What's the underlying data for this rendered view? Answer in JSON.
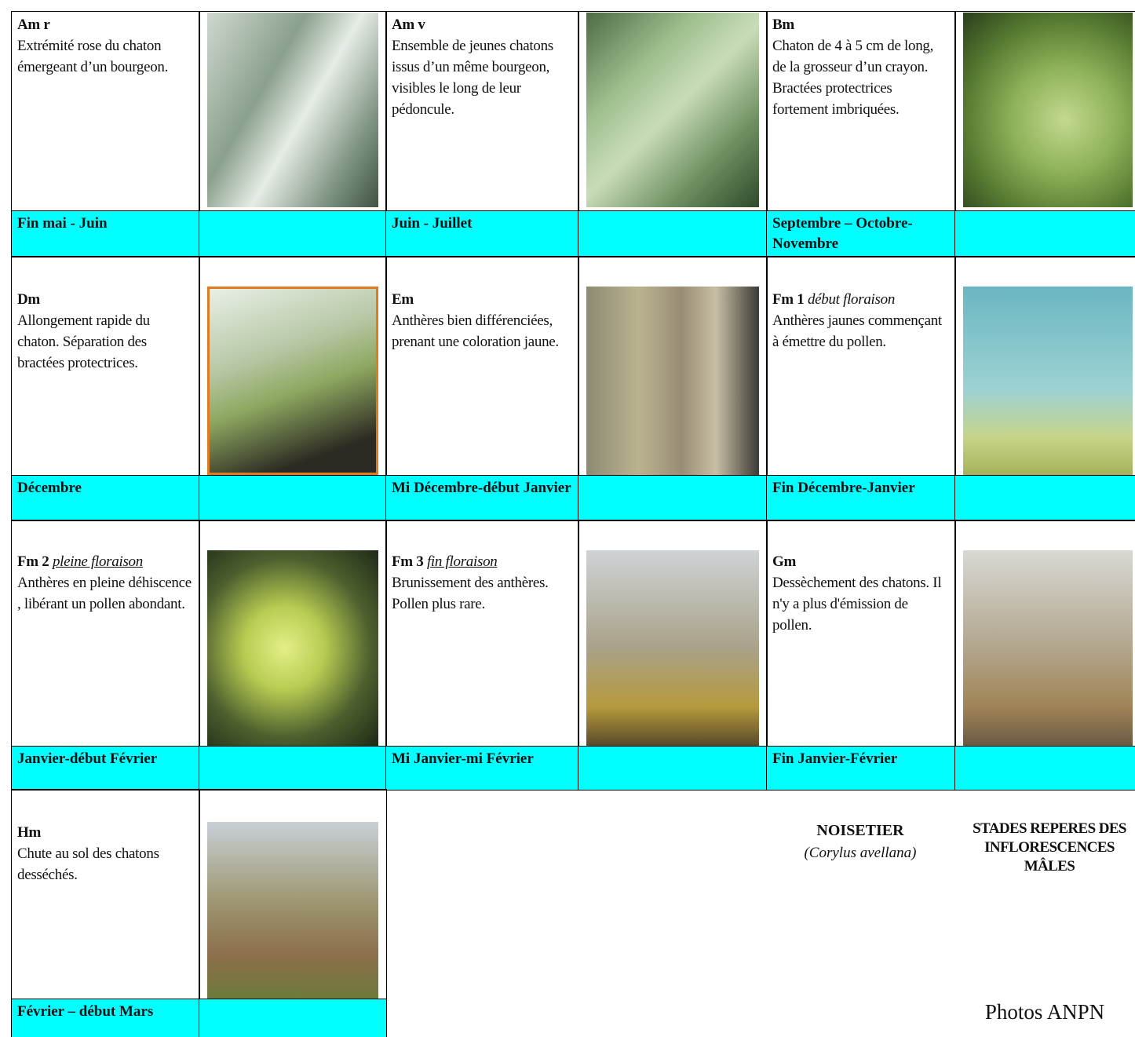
{
  "stages": [
    {
      "code": "Am r",
      "description": "Extrémité rose du chaton émergeant d’un bourgeon.",
      "period": "Fin mai - Juin"
    },
    {
      "code": "Am v",
      "description": "Ensemble de jeunes chatons issus d’un même bourgeon, visibles le long de leur pédoncule.",
      "period": "Juin - Juillet"
    },
    {
      "code": "Bm",
      "description": "Chaton de 4 à 5 cm de long, de la grosseur d’un crayon. Bractées protectrices fortement imbriquées.",
      "period": "Septembre – Octobre-Novembre"
    },
    {
      "code": "Dm",
      "description": "Allongement rapide du chaton. Séparation des bractées protectrices.",
      "period": "Décembre"
    },
    {
      "code": "Em",
      "description": "Anthères bien différenciées, prenant une coloration jaune.",
      "period": "Mi Décembre-début Janvier"
    },
    {
      "code": "Fm 1",
      "qualifier": "début floraison",
      "description": "Anthères jaunes commençant à émettre du pollen.",
      "period": "Fin Décembre-Janvier"
    },
    {
      "code": "Fm 2",
      "qualifier": "pleine floraison",
      "description": "Anthères en pleine déhiscence , libérant un pollen abondant.",
      "period": "Janvier-début Février"
    },
    {
      "code": "Fm 3",
      "qualifier": "fin floraison",
      "description": "Brunissement des anthères. Pollen plus rare.",
      "period": "Mi Janvier-mi Février"
    },
    {
      "code": "Gm",
      "description": "Dessèchement des chatons. Il n'y a plus d'émission de pollen.",
      "period": "Fin Janvier-Février"
    },
    {
      "code": "Hm",
      "description": "Chute au sol des chatons desséchés.",
      "period": "Février – début Mars"
    }
  ],
  "species": {
    "name": "NOISETIER",
    "latin": "(Corylus avellana)"
  },
  "heading": "STADES REPERES DES INFLORESCENCES MÂLES",
  "credit": "Photos ANPN"
}
